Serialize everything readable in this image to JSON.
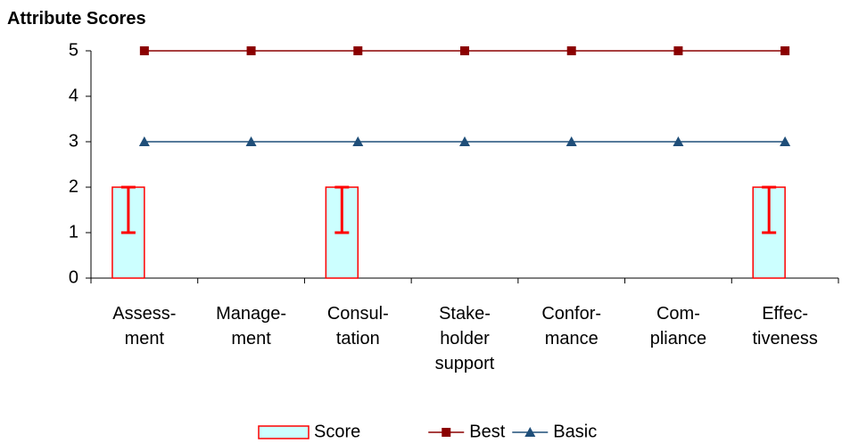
{
  "chart_data": {
    "type": "combo",
    "title": "Attribute Scores",
    "categories": [
      "Assess-\nment",
      "Manage-\nment",
      "Consul-\ntation",
      "Stake-\nholder\nsupport",
      "Confor-\nmance",
      "Com-\npliance",
      "Effec-\ntiveness"
    ],
    "series": [
      {
        "name": "Score",
        "kind": "bar",
        "color": "#ccffff",
        "edge": "#ff0000",
        "values": [
          2,
          null,
          2,
          null,
          null,
          null,
          2
        ],
        "errors_minus": [
          1,
          null,
          1,
          null,
          null,
          null,
          1
        ]
      },
      {
        "name": "Best",
        "kind": "line",
        "marker": "square",
        "color": "#8b0000",
        "values": [
          5,
          5,
          5,
          5,
          5,
          5,
          5
        ]
      },
      {
        "name": "Basic",
        "kind": "line",
        "marker": "triangle",
        "color": "#1f4e79",
        "values": [
          3,
          3,
          3,
          3,
          3,
          3,
          3
        ]
      }
    ],
    "ylim": [
      0,
      5
    ],
    "yticks": [
      0,
      1,
      2,
      3,
      4,
      5
    ],
    "grid": false,
    "legend": "bottom"
  }
}
